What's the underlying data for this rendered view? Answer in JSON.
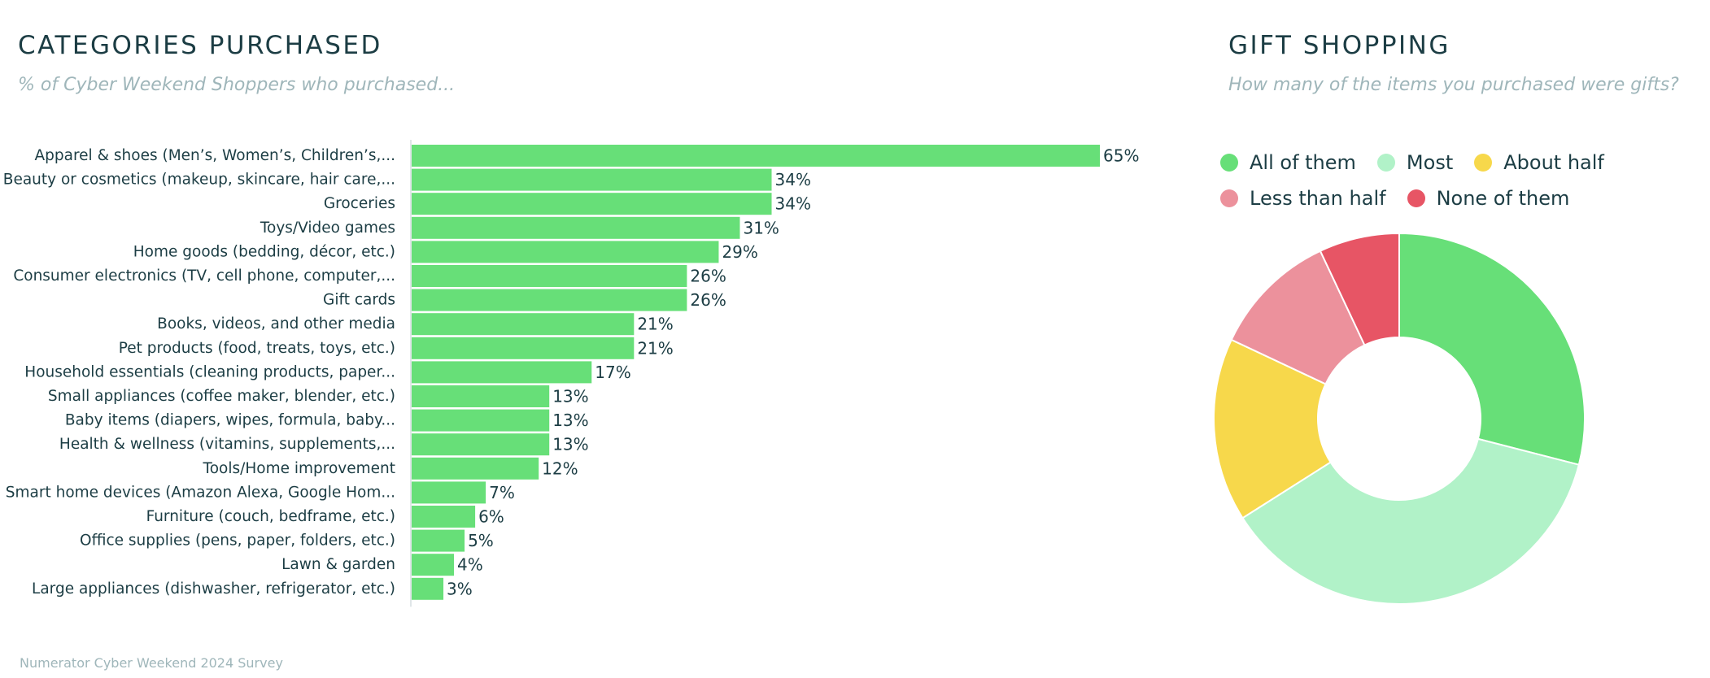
{
  "chart_data": [
    {
      "type": "bar",
      "orientation": "horizontal",
      "title": "CATEGORIES PURCHASED",
      "subtitle": "% of Cyber Weekend Shoppers who purchased...",
      "categories": [
        "Apparel & shoes (Men’s, Women’s, Children’s,...",
        "Beauty or cosmetics (makeup, skincare, hair care,...",
        "Groceries",
        "Toys/Video games",
        "Home goods (bedding, décor, etc.)",
        "Consumer electronics (TV, cell phone, computer,...",
        "Gift cards",
        "Books, videos, and other media",
        "Pet products (food, treats, toys, etc.)",
        "Household essentials (cleaning products, paper...",
        "Small appliances (coffee maker, blender, etc.)",
        "Baby items (diapers, wipes, formula, baby...",
        "Health & wellness (vitamins, supplements,...",
        "Tools/Home improvement",
        "Smart home devices (Amazon Alexa, Google Hom...",
        "Furniture (couch, bedframe, etc.)",
        "Office supplies (pens, paper, folders, etc.)",
        "Lawn & garden",
        "Large appliances (dishwasher, refrigerator, etc.)"
      ],
      "values": [
        65,
        34,
        34,
        31,
        29,
        26,
        26,
        21,
        21,
        17,
        13,
        13,
        13,
        12,
        7,
        6,
        5,
        4,
        3
      ],
      "labels": [
        "65%",
        "34%",
        "34%",
        "31%",
        "29%",
        "26%",
        "26%",
        "21%",
        "21%",
        "17%",
        "13%",
        "13%",
        "13%",
        "12%",
        "7%",
        "6%",
        "5%",
        "4%",
        "3%"
      ],
      "xlim": [
        0,
        100
      ],
      "grid": false,
      "bar_color": "#67df78"
    },
    {
      "type": "pie",
      "donut": true,
      "title": "GIFT SHOPPING",
      "subtitle": "How many of the items you purchased were gifts?",
      "legend_position": "top",
      "slices": [
        {
          "name": "All of them",
          "value": 29,
          "color": "#67df78"
        },
        {
          "name": "Most",
          "value": 37,
          "color": "#b1f2c8"
        },
        {
          "name": "About half",
          "value": 16,
          "color": "#f7d84b"
        },
        {
          "name": "Less than half",
          "value": 11,
          "color": "#ec919c"
        },
        {
          "name": "None of them",
          "value": 7,
          "color": "#e75565"
        }
      ]
    }
  ],
  "footer": "Numerator Cyber Weekend 2024 Survey",
  "colors": {
    "text": "#1c3d44",
    "muted": "#9fb6ba",
    "axis": "#d5dde0"
  }
}
